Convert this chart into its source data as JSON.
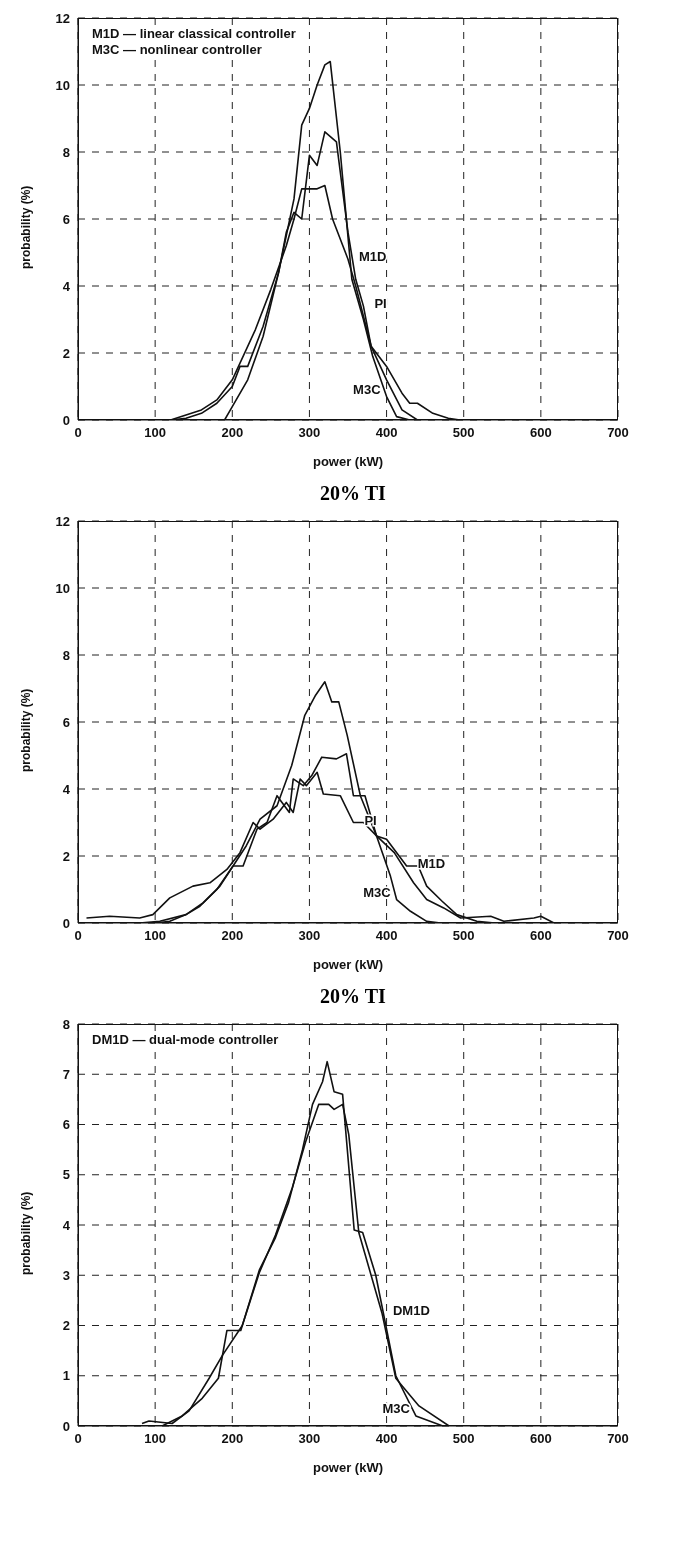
{
  "chart_data": [
    {
      "type": "line",
      "title": "20% TI",
      "xlabel": "power (kW)",
      "ylabel": "probability (%)",
      "xlim": [
        0,
        700
      ],
      "xticks": [
        0,
        100,
        200,
        300,
        400,
        500,
        600,
        700
      ],
      "ylim": [
        0,
        12
      ],
      "yticks": [
        0,
        2,
        4,
        6,
        8,
        10,
        12
      ],
      "grid": true,
      "legend": false,
      "marker": "none",
      "line_style": "solid",
      "annotations": [
        "M1D — linear classical controller",
        "M3C — nonlinear controller"
      ],
      "series": [
        {
          "name": "M3C",
          "color": "#111111",
          "x": [
            170,
            190,
            200,
            220,
            240,
            260,
            280,
            290,
            300,
            310,
            320,
            327,
            340,
            355,
            370,
            382,
            400,
            413,
            430
          ],
          "values": [
            0,
            0,
            0.4,
            1.2,
            2.5,
            4.4,
            6.6,
            8.8,
            9.3,
            10,
            10.6,
            10.7,
            8,
            4.2,
            3,
            1.9,
            0.7,
            0.1,
            0
          ]
        },
        {
          "name": "PI",
          "color": "#111111",
          "x": [
            120,
            140,
            160,
            180,
            200,
            210,
            220,
            240,
            260,
            270,
            280,
            290,
            300,
            310,
            320,
            335,
            350,
            360,
            370,
            380,
            400,
            420,
            440
          ],
          "values": [
            0,
            0.05,
            0.2,
            0.5,
            1,
            1.6,
            1.6,
            2.8,
            4.4,
            5.6,
            6.2,
            6,
            7.9,
            7.6,
            8.6,
            8.3,
            5.6,
            4.2,
            3.4,
            2.2,
            1.2,
            0.3,
            0
          ]
        },
        {
          "name": "M1D",
          "color": "#111111",
          "x": [
            120,
            160,
            180,
            200,
            230,
            250,
            270,
            280,
            290,
            300,
            310,
            320,
            330,
            350,
            360,
            380,
            400,
            420,
            430,
            440,
            460,
            480,
            495
          ],
          "values": [
            0,
            0.3,
            0.6,
            1.2,
            2.7,
            3.9,
            5.2,
            6,
            6.9,
            6.9,
            6.9,
            7,
            6,
            4.8,
            4,
            2.2,
            1.6,
            0.8,
            0.5,
            0.5,
            0.2,
            0.05,
            0
          ]
        }
      ]
    },
    {
      "type": "line",
      "title": "20% TI",
      "xlabel": "power (kW)",
      "ylabel": "probability (%)",
      "xlim": [
        0,
        700
      ],
      "xticks": [
        0,
        100,
        200,
        300,
        400,
        500,
        600,
        700
      ],
      "ylim": [
        0,
        12
      ],
      "yticks": [
        0,
        2,
        4,
        6,
        8,
        10,
        12
      ],
      "grid": true,
      "legend": false,
      "marker": "none",
      "line_style": "solid",
      "series": [
        {
          "name": "M3C",
          "color": "#111111",
          "x": [
            100,
            119,
            140,
            158,
            180,
            201,
            218,
            236,
            258,
            277,
            294,
            308,
            320,
            329,
            338,
            349,
            366,
            387,
            405,
            413,
            431,
            452,
            470
          ],
          "values": [
            0,
            0.05,
            0.25,
            0.5,
            1,
            1.7,
            2.3,
            3.1,
            3.5,
            4.7,
            6.2,
            6.8,
            7.2,
            6.6,
            6.6,
            5.6,
            3.8,
            2.6,
            1.4,
            0.7,
            0.35,
            0.05,
            0
          ]
        },
        {
          "name": "M1D",
          "color": "#111111",
          "x": [
            80,
            106,
            140,
            162,
            184,
            201,
            214,
            232,
            245,
            258,
            274,
            279,
            292,
            303,
            316,
            335,
            348,
            357,
            372,
            387,
            400,
            426,
            441,
            452,
            472,
            491,
            517,
            540
          ],
          "values": [
            0,
            0.05,
            0.25,
            0.6,
            1.1,
            1.7,
            1.7,
            2.8,
            3,
            3.8,
            3.3,
            4.3,
            4.1,
            4.4,
            4.95,
            4.9,
            5.05,
            3.8,
            3.8,
            2.6,
            2.5,
            1.7,
            1.7,
            1.1,
            0.65,
            0.25,
            0.05,
            0
          ]
        },
        {
          "name": "PI",
          "color": "#111111",
          "x": [
            11,
            41,
            80,
            97,
            119,
            149,
            171,
            193,
            210,
            227,
            236,
            253,
            270,
            279,
            288,
            296,
            310,
            318,
            340,
            357,
            370,
            387,
            410,
            435,
            452,
            474,
            496,
            535,
            552,
            591,
            600,
            617
          ],
          "values": [
            0.15,
            0.2,
            0.15,
            0.25,
            0.75,
            1.1,
            1.2,
            1.6,
            2.1,
            3,
            2.8,
            3.1,
            3.6,
            3.3,
            4.3,
            4.1,
            4.5,
            3.85,
            3.8,
            3,
            3,
            2.6,
            2.1,
            1.2,
            0.7,
            0.45,
            0.15,
            0.2,
            0.05,
            0.15,
            0.2,
            0
          ]
        }
      ]
    },
    {
      "type": "line",
      "xlabel": "power (kW)",
      "ylabel": "probability (%)",
      "xlim": [
        0,
        700
      ],
      "xticks": [
        0,
        100,
        200,
        300,
        400,
        500,
        600,
        700
      ],
      "ylim": [
        0,
        8
      ],
      "yticks": [
        0,
        1,
        2,
        3,
        4,
        5,
        6,
        7,
        8
      ],
      "grid": true,
      "legend": false,
      "marker": "none",
      "line_style": "solid",
      "annotations": [
        "DM1D — dual-mode controller"
      ],
      "series": [
        {
          "name": "M3C",
          "color": "#111111",
          "x": [
            109,
            135,
            161,
            182,
            193,
            211,
            235,
            256,
            273,
            291,
            304,
            317,
            323,
            332,
            343,
            358,
            369,
            386,
            403,
            412,
            438,
            473
          ],
          "values": [
            0,
            0.2,
            0.55,
            0.95,
            1.9,
            1.9,
            3.1,
            3.75,
            4.45,
            5.5,
            6.4,
            6.85,
            7.25,
            6.65,
            6.6,
            3.9,
            3.85,
            3,
            1.7,
            1,
            0.2,
            0
          ]
        },
        {
          "name": "DM1D",
          "color": "#111111",
          "x": [
            83,
            92,
            122,
            144,
            170,
            187,
            213,
            235,
            256,
            278,
            295,
            312,
            325,
            332,
            343,
            351,
            364,
            394,
            412,
            420,
            442,
            481
          ],
          "values": [
            0.05,
            0.1,
            0.05,
            0.3,
            0.95,
            1.4,
            2,
            3.05,
            3.8,
            4.75,
            5.65,
            6.4,
            6.4,
            6.3,
            6.4,
            5.8,
            3.85,
            2.25,
            0.95,
            0.8,
            0.4,
            0
          ]
        }
      ]
    }
  ]
}
